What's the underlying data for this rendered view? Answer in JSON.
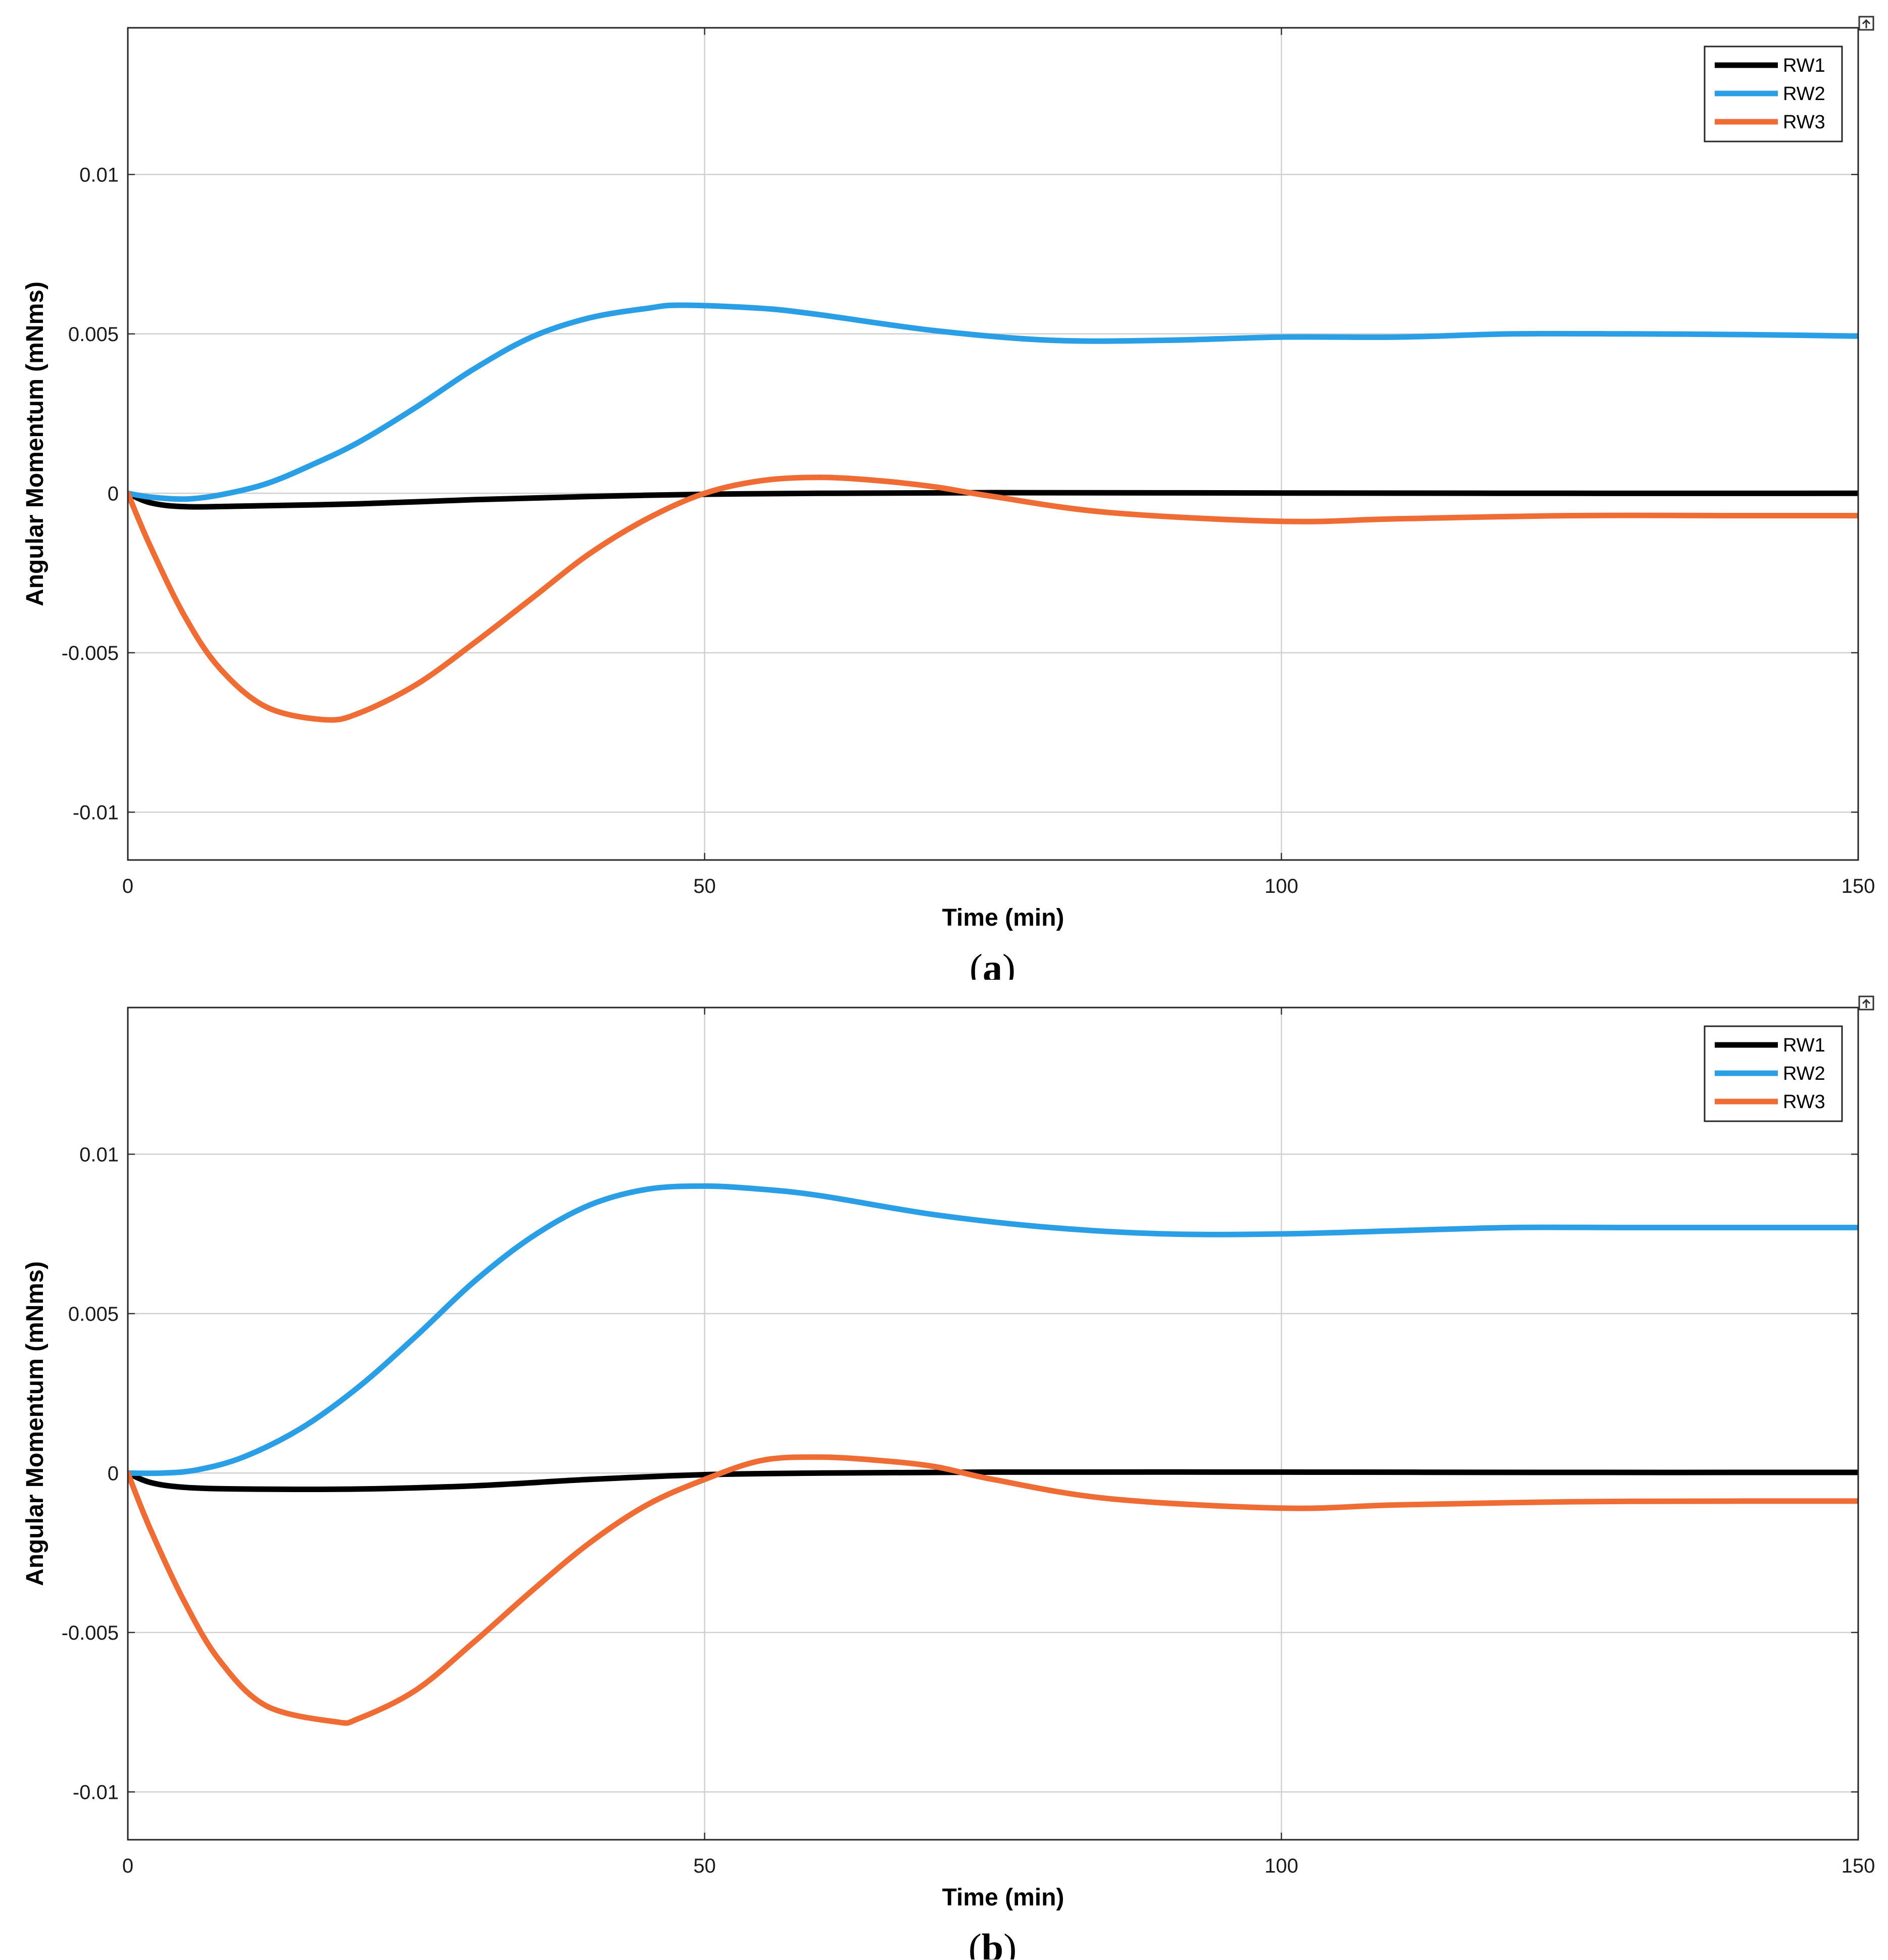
{
  "chart_data": [
    {
      "type": "line",
      "caption_letter": "a",
      "xlabel": "Time (min)",
      "ylabel": "Angular Momentum (mNms)",
      "xlim": [
        0,
        150
      ],
      "ylim": [
        -0.0115,
        0.0146
      ],
      "xticks": [
        0,
        50,
        100,
        150
      ],
      "xtick_labels": [
        "0",
        "50",
        "100",
        "150"
      ],
      "yticks": [
        -0.01,
        -0.005,
        0,
        0.005,
        0.01
      ],
      "ytick_labels": [
        "-0.01",
        "-0.005",
        "0",
        "0.005",
        "0.01"
      ],
      "grid": true,
      "legend_position": "top-right",
      "series": [
        {
          "name": "RW1",
          "color": "#000000",
          "x": [
            0,
            2,
            5,
            10,
            20,
            30,
            40,
            50,
            60,
            75,
            100,
            125,
            150
          ],
          "y": [
            0,
            -0.0003,
            -0.00042,
            -0.0004,
            -0.00033,
            -0.0002,
            -0.0001,
            -3e-05,
            0.0,
            2e-05,
            1e-05,
            0.0,
            0.0
          ]
        },
        {
          "name": "RW2",
          "color": "#2b9fe6",
          "x": [
            0,
            2,
            5,
            8,
            12,
            16,
            20,
            25,
            30,
            35,
            40,
            45,
            48,
            55,
            60,
            70,
            80,
            90,
            100,
            110,
            120,
            130,
            140,
            150
          ],
          "y": [
            0,
            -0.00012,
            -0.00018,
            -5e-05,
            0.0003,
            0.0009,
            0.0016,
            0.0027,
            0.0039,
            0.0049,
            0.0055,
            0.0058,
            0.0059,
            0.0058,
            0.0056,
            0.0051,
            0.0048,
            0.0048,
            0.0049,
            0.0049,
            0.005,
            0.005,
            0.00498,
            0.00493
          ]
        },
        {
          "name": "RW3",
          "color": "#ef6c35",
          "x": [
            0,
            2,
            5,
            8,
            12,
            17,
            20,
            25,
            30,
            35,
            40,
            45,
            50,
            55,
            60,
            65,
            70,
            75,
            85,
            100,
            110,
            125,
            140,
            150
          ],
          "y": [
            0,
            -0.0017,
            -0.0039,
            -0.0055,
            -0.0067,
            -0.0071,
            -0.0069,
            -0.006,
            -0.0047,
            -0.0033,
            -0.0019,
            -0.0008,
            0.0,
            0.0004,
            0.0005,
            0.0004,
            0.0002,
            -0.0001,
            -0.0006,
            -0.00088,
            -0.0008,
            -0.0007,
            -0.0007,
            -0.0007
          ]
        }
      ]
    },
    {
      "type": "line",
      "caption_letter": "b",
      "xlabel": "Time (min)",
      "ylabel": "Angular Momentum (mNms)",
      "xlim": [
        0,
        150
      ],
      "ylim": [
        -0.0115,
        0.0146
      ],
      "xticks": [
        0,
        50,
        100,
        150
      ],
      "xtick_labels": [
        "0",
        "50",
        "100",
        "150"
      ],
      "yticks": [
        -0.01,
        -0.005,
        0,
        0.005,
        0.01
      ],
      "ytick_labels": [
        "-0.01",
        "-0.005",
        "0",
        "0.005",
        "0.01"
      ],
      "grid": true,
      "legend_position": "top-right",
      "series": [
        {
          "name": "RW1",
          "color": "#000000",
          "x": [
            0,
            2,
            5,
            10,
            20,
            30,
            40,
            50,
            60,
            75,
            100,
            125,
            150
          ],
          "y": [
            0,
            -0.0003,
            -0.00045,
            -0.0005,
            -0.0005,
            -0.0004,
            -0.0002,
            -5e-05,
            0.0,
            3e-05,
            3e-05,
            2e-05,
            2e-05
          ]
        },
        {
          "name": "RW2",
          "color": "#2b9fe6",
          "x": [
            0,
            3,
            6,
            10,
            15,
            20,
            25,
            30,
            35,
            40,
            45,
            50,
            55,
            60,
            70,
            80,
            90,
            100,
            110,
            120,
            130,
            140,
            150
          ],
          "y": [
            0,
            0.0,
            0.0001,
            0.0005,
            0.0014,
            0.0027,
            0.0043,
            0.006,
            0.0074,
            0.0084,
            0.0089,
            0.009,
            0.0089,
            0.0087,
            0.0081,
            0.0077,
            0.0075,
            0.0075,
            0.0076,
            0.0077,
            0.0077,
            0.0077,
            0.0077
          ]
        },
        {
          "name": "RW3",
          "color": "#ef6c35",
          "x": [
            0,
            2,
            5,
            8,
            12,
            18,
            20,
            25,
            30,
            35,
            40,
            45,
            50,
            55,
            60,
            65,
            70,
            75,
            85,
            100,
            110,
            125,
            140,
            150
          ],
          "y": [
            0,
            -0.0018,
            -0.0041,
            -0.0059,
            -0.0073,
            -0.0078,
            -0.0077,
            -0.0068,
            -0.0053,
            -0.0037,
            -0.0022,
            -0.001,
            -0.0002,
            0.0004,
            0.0005,
            0.0004,
            0.0002,
            -0.0002,
            -0.0008,
            -0.0011,
            -0.001,
            -0.0009,
            -0.00088,
            -0.00088
          ]
        }
      ]
    }
  ]
}
